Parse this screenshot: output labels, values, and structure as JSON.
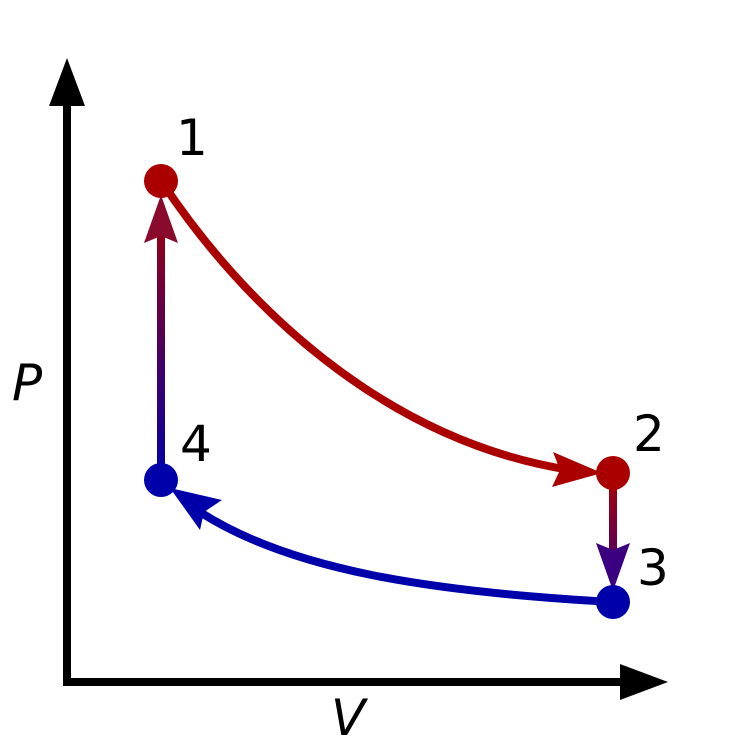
{
  "axes": {
    "x_label": "V",
    "y_label": "P"
  },
  "states": [
    {
      "label": "1",
      "color": "#aa0000"
    },
    {
      "label": "2",
      "color": "#aa0000"
    },
    {
      "label": "3",
      "color": "#0000aa"
    },
    {
      "label": "4",
      "color": "#0000aa"
    }
  ],
  "processes": [
    {
      "from": "1",
      "to": "2",
      "color": "#aa0000"
    },
    {
      "from": "2",
      "to": "3",
      "color_start": "#aa0000",
      "color_end": "#3a0080"
    },
    {
      "from": "3",
      "to": "4",
      "color": "#0000aa"
    },
    {
      "from": "4",
      "to": "1",
      "color_start": "#0000aa",
      "color_end": "#aa0000"
    }
  ]
}
